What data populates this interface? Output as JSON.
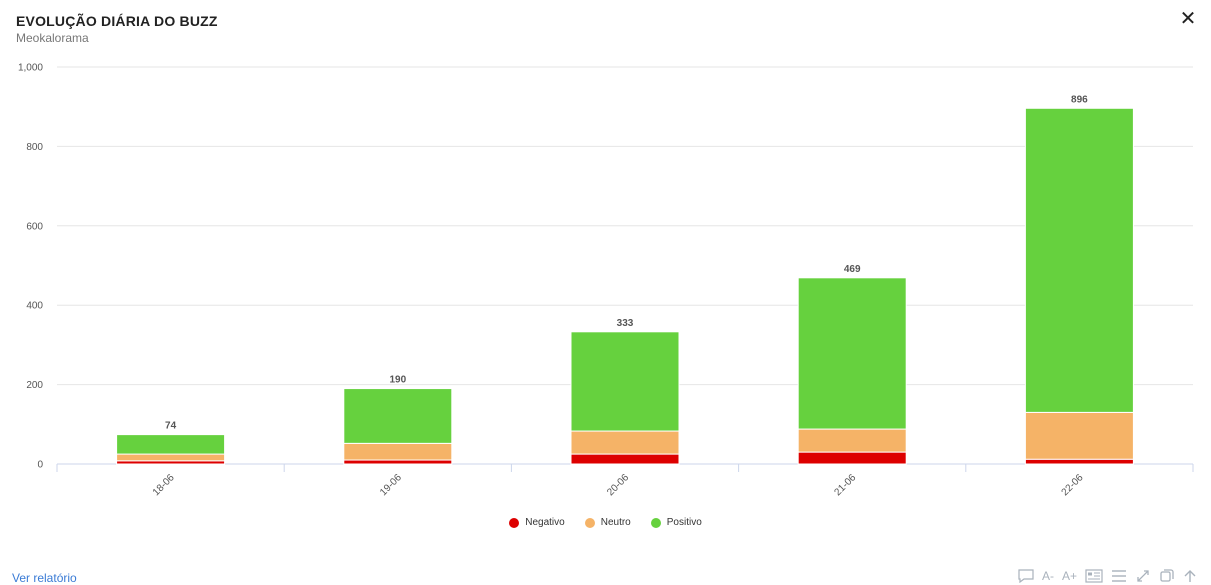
{
  "header": {
    "title": "EVOLUÇÃO DIÁRIA DO BUZZ",
    "subtitle": "Meokalorama",
    "close_glyph": "✕"
  },
  "chart_data": {
    "type": "bar",
    "stacked": true,
    "categories": [
      "18-06",
      "19-06",
      "20-06",
      "21-06",
      "22-06"
    ],
    "series": [
      {
        "name": "Negativo",
        "color": "#dd0000",
        "values": [
          8,
          10,
          25,
          30,
          12
        ]
      },
      {
        "name": "Neutro",
        "color": "#f5b367",
        "values": [
          17,
          42,
          58,
          58,
          118
        ]
      },
      {
        "name": "Positivo",
        "color": "#66d13e",
        "values": [
          49,
          138,
          250,
          381,
          766
        ]
      }
    ],
    "totals": [
      74,
      190,
      333,
      469,
      896
    ],
    "yticks": [
      "0",
      "200",
      "400",
      "600",
      "800",
      "1,000"
    ],
    "ylim": [
      0,
      1000
    ],
    "grid": true,
    "legend_position": "bottom-center"
  },
  "footer": {
    "report_link": "Ver relatório",
    "tools": {
      "font_decrease": "A-",
      "font_increase": "A+"
    }
  }
}
